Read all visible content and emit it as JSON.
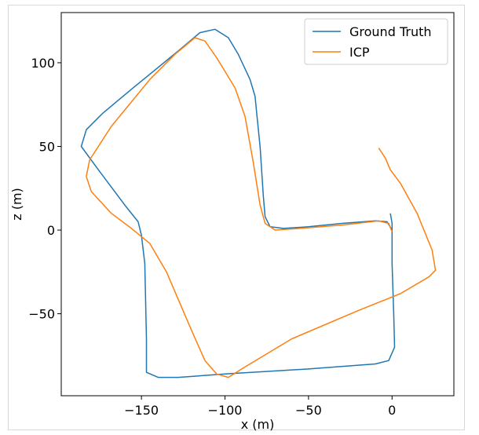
{
  "chart_data": {
    "type": "line",
    "title": "",
    "xlabel": "x (m)",
    "ylabel": "z (m)",
    "xlim": [
      -198,
      37
    ],
    "ylim": [
      -99,
      130
    ],
    "xticks": [
      -150,
      -100,
      -50,
      0
    ],
    "yticks": [
      100,
      50,
      0,
      -50
    ],
    "xtick_labels": [
      "−150",
      "−100",
      "−50",
      "0"
    ],
    "ytick_labels": [
      "100",
      "50",
      "0",
      "−50"
    ],
    "grid": false,
    "legend_position": "top-right",
    "series": [
      {
        "name": "Ground Truth",
        "color": "#1f77b4",
        "points": [
          [
            -1,
            10
          ],
          [
            0,
            4
          ],
          [
            0,
            -20
          ],
          [
            1,
            -50
          ],
          [
            1.5,
            -70
          ],
          [
            -2,
            -78
          ],
          [
            -10,
            -80
          ],
          [
            -50,
            -83
          ],
          [
            -100,
            -86
          ],
          [
            -128,
            -88
          ],
          [
            -140,
            -88
          ],
          [
            -147,
            -85
          ],
          [
            -147,
            -65
          ],
          [
            -148,
            -20
          ],
          [
            -150,
            -3
          ],
          [
            -152,
            5
          ],
          [
            -160,
            15
          ],
          [
            -175,
            35
          ],
          [
            -186,
            50
          ],
          [
            -183,
            60
          ],
          [
            -173,
            70
          ],
          [
            -155,
            85
          ],
          [
            -128,
            107
          ],
          [
            -115,
            118
          ],
          [
            -106,
            120
          ],
          [
            -98,
            115
          ],
          [
            -92,
            105
          ],
          [
            -85,
            90
          ],
          [
            -82,
            80
          ],
          [
            -81,
            70
          ],
          [
            -79,
            50
          ],
          [
            -77,
            20
          ],
          [
            -76,
            8
          ],
          [
            -73,
            2
          ],
          [
            -65,
            1
          ],
          [
            -50,
            2
          ],
          [
            -30,
            4
          ],
          [
            -10,
            5.5
          ],
          [
            -3,
            5
          ],
          [
            0,
            0
          ]
        ]
      },
      {
        "name": "ICP",
        "color": "#ff7f0e",
        "points": [
          [
            -8,
            49
          ],
          [
            -4,
            43
          ],
          [
            -1,
            36
          ],
          [
            5,
            28
          ],
          [
            15,
            10
          ],
          [
            24,
            -12
          ],
          [
            26,
            -24
          ],
          [
            22,
            -28
          ],
          [
            5,
            -38
          ],
          [
            -20,
            -48
          ],
          [
            -60,
            -65
          ],
          [
            -90,
            -83
          ],
          [
            -98,
            -88
          ],
          [
            -105,
            -86
          ],
          [
            -112,
            -78
          ],
          [
            -120,
            -60
          ],
          [
            -135,
            -25
          ],
          [
            -145,
            -8
          ],
          [
            -156,
            1
          ],
          [
            -168,
            10
          ],
          [
            -180,
            23
          ],
          [
            -183,
            32
          ],
          [
            -181,
            42
          ],
          [
            -168,
            62
          ],
          [
            -145,
            90
          ],
          [
            -130,
            105
          ],
          [
            -118,
            115
          ],
          [
            -112,
            113
          ],
          [
            -105,
            103
          ],
          [
            -94,
            85
          ],
          [
            -88,
            68
          ],
          [
            -83,
            40
          ],
          [
            -79,
            15
          ],
          [
            -76,
            4
          ],
          [
            -70,
            0
          ],
          [
            -55,
            1
          ],
          [
            -30,
            3
          ],
          [
            -8,
            5.5
          ],
          [
            -2,
            4
          ],
          [
            0,
            -1
          ]
        ]
      }
    ]
  }
}
